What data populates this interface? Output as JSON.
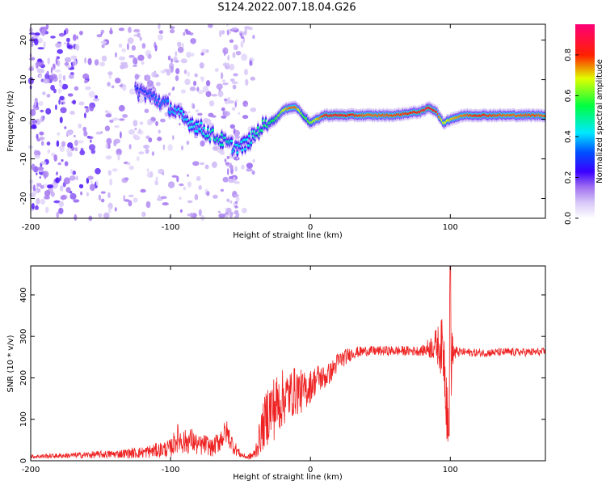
{
  "title": "S124.2022.007.18.04.G26",
  "chart_data": [
    {
      "type": "heatmap",
      "xlabel": "Height of straight line (km)",
      "ylabel": "Frequency (Hz)",
      "xlim": [
        -200,
        168
      ],
      "ylim": [
        -25,
        24
      ],
      "xticks": [
        -200,
        -100,
        0,
        100
      ],
      "yticks": [
        -20,
        -10,
        0,
        10,
        20
      ],
      "colorbar": {
        "label": "Normalized spectral amplitude",
        "ticks": [
          "0.0",
          "0.2",
          "0.4",
          "0.6",
          "0.8"
        ],
        "range": [
          0,
          0.95
        ],
        "colormap": [
          "#ffffff",
          "#d8c8f8",
          "#b088f0",
          "#7a20f0",
          "#0000ff",
          "#00e0ff",
          "#00ff40",
          "#ffff00",
          "#ff2000",
          "#ff0066"
        ]
      },
      "ridge": {
        "x": [
          -120,
          -110,
          -100,
          -90,
          -80,
          -70,
          -60,
          -55,
          -50,
          -45,
          -40,
          -35,
          -30,
          -25,
          -20,
          -15,
          -10,
          -5,
          0,
          5,
          10,
          20,
          40,
          60,
          80,
          85,
          90,
          95,
          100,
          110,
          120,
          140,
          160,
          168
        ],
        "freq": [
          7,
          5,
          3,
          0,
          -2,
          -4,
          -6,
          -7,
          -7,
          -6,
          -4,
          -2,
          -1,
          0,
          2,
          3,
          3,
          1,
          -1,
          0,
          1,
          1,
          1,
          1,
          2,
          3,
          2,
          -1,
          0,
          1,
          1,
          1,
          1,
          1
        ],
        "amp": [
          0.3,
          0.35,
          0.4,
          0.45,
          0.45,
          0.5,
          0.5,
          0.45,
          0.45,
          0.45,
          0.5,
          0.55,
          0.55,
          0.6,
          0.7,
          0.8,
          0.8,
          0.6,
          0.65,
          0.75,
          0.85,
          0.88,
          0.8,
          0.82,
          0.85,
          0.9,
          0.85,
          0.7,
          0.75,
          0.8,
          0.85,
          0.8,
          0.82,
          0.8
        ]
      }
    },
    {
      "type": "line",
      "xlabel": "Height of straight line (km)",
      "ylabel": "SNR (10 * v/v)",
      "xlim": [
        -200,
        168
      ],
      "ylim": [
        0,
        470
      ],
      "xticks": [
        -200,
        -100,
        0,
        100
      ],
      "yticks": [
        0,
        100,
        200,
        300,
        400
      ],
      "series": [
        {
          "color": "#ee2222",
          "x": [
            -200,
            -180,
            -160,
            -140,
            -120,
            -110,
            -100,
            -95,
            -90,
            -85,
            -80,
            -75,
            -70,
            -65,
            -60,
            -55,
            -50,
            -45,
            -40,
            -35,
            -30,
            -25,
            -20,
            -15,
            -10,
            -5,
            0,
            5,
            10,
            15,
            20,
            30,
            40,
            60,
            80,
            90,
            95,
            98,
            100,
            102,
            105,
            110,
            120,
            140,
            160,
            168
          ],
          "y": [
            10,
            12,
            14,
            16,
            20,
            25,
            30,
            55,
            45,
            50,
            35,
            40,
            30,
            50,
            70,
            35,
            15,
            8,
            15,
            70,
            120,
            130,
            150,
            160,
            170,
            165,
            180,
            200,
            200,
            215,
            240,
            260,
            265,
            265,
            265,
            280,
            270,
            140,
            250,
            260,
            262,
            262,
            260,
            262,
            262,
            262
          ],
          "amp": [
            5,
            6,
            8,
            10,
            14,
            18,
            22,
            35,
            30,
            30,
            25,
            25,
            20,
            30,
            30,
            20,
            8,
            5,
            15,
            50,
            80,
            80,
            70,
            60,
            60,
            50,
            40,
            35,
            30,
            25,
            25,
            15,
            12,
            12,
            12,
            40,
            80,
            120,
            150,
            30,
            12,
            10,
            10,
            10,
            10,
            10
          ]
        }
      ]
    }
  ]
}
